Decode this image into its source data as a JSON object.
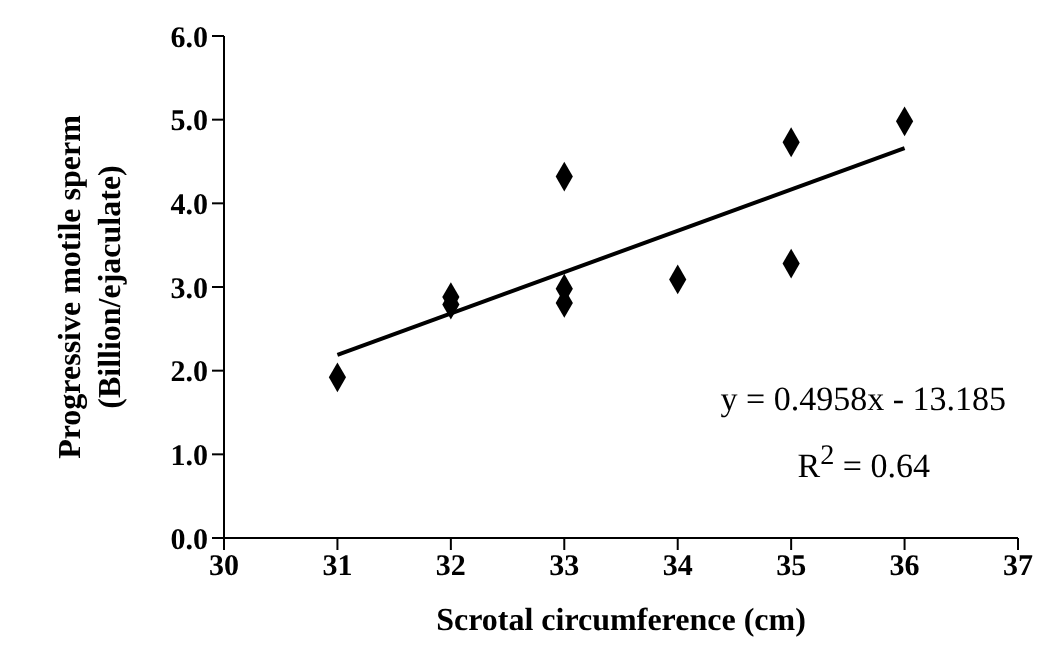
{
  "chart_data": {
    "type": "scatter",
    "xlabel": "Scrotal circumference (cm)",
    "ylabel": "Progressive motile sperm (Billion/ejaculate)",
    "xlim": [
      30,
      37
    ],
    "xticks": [
      30,
      31,
      32,
      33,
      34,
      35,
      36,
      37
    ],
    "ylim": [
      0,
      6
    ],
    "yticks": [
      {
        "value": 0,
        "label": "0.0"
      },
      {
        "value": 1,
        "label": "1.0"
      },
      {
        "value": 2,
        "label": "2.0"
      },
      {
        "value": 3,
        "label": "3.0"
      },
      {
        "value": 4,
        "label": "4.0"
      },
      {
        "value": 5,
        "label": "5.0"
      },
      {
        "value": 6,
        "label": "6.0"
      }
    ],
    "grid": false,
    "legend": false,
    "marker": "diamond",
    "series": [
      {
        "color": "#000000",
        "x": [
          31,
          32,
          32,
          33,
          33,
          33,
          34,
          35,
          35,
          36
        ],
        "values": [
          1.92,
          2.88,
          2.79,
          4.32,
          2.98,
          2.81,
          3.09,
          4.73,
          3.28,
          4.98
        ]
      },
      {
        "type": "line",
        "color": "#000000",
        "x": [
          31,
          36
        ],
        "values": [
          2.19,
          4.66
        ],
        "marker": "none",
        "line_style": "solid"
      }
    ],
    "annotations": [
      "y = 0.4958x - 13.185",
      "R$^{2}$ = 0.64"
    ]
  }
}
